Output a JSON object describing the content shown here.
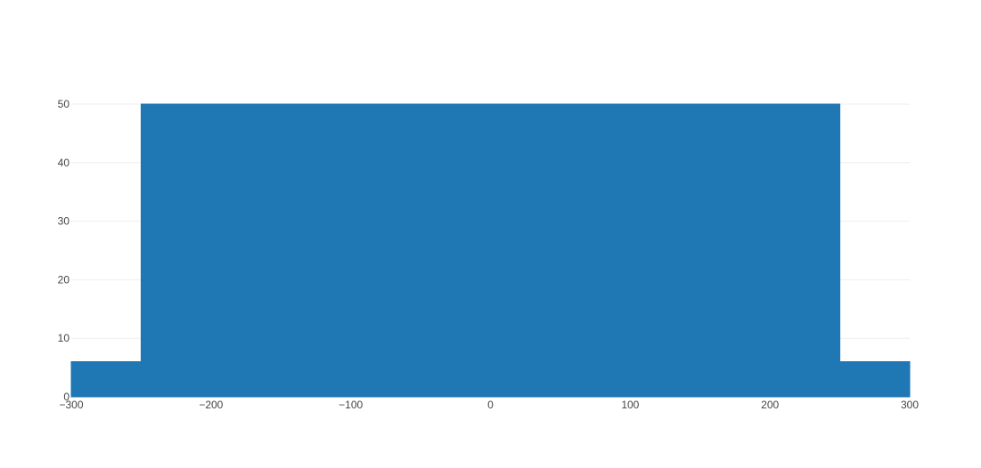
{
  "chart_data": {
    "type": "area",
    "title": "",
    "xlabel": "",
    "ylabel": "",
    "xlim": [
      -300,
      300
    ],
    "ylim": [
      0,
      50
    ],
    "grid": true,
    "legend": "none",
    "x_ticks": [
      {
        "value": -300,
        "label": "−300"
      },
      {
        "value": -200,
        "label": "−200"
      },
      {
        "value": -100,
        "label": "−100"
      },
      {
        "value": 0,
        "label": "0"
      },
      {
        "value": 100,
        "label": "100"
      },
      {
        "value": 200,
        "label": "200"
      },
      {
        "value": 300,
        "label": "300"
      }
    ],
    "y_ticks": [
      {
        "value": 0,
        "label": "0"
      },
      {
        "value": 10,
        "label": "10"
      },
      {
        "value": 20,
        "label": "20"
      },
      {
        "value": 30,
        "label": "30"
      },
      {
        "value": 40,
        "label": "40"
      },
      {
        "value": 50,
        "label": "50"
      }
    ],
    "series": [
      {
        "color": "#1f77b4",
        "x": [
          -300,
          -250,
          -250,
          250,
          250,
          300
        ],
        "y": [
          6,
          6,
          50,
          50,
          6,
          6
        ]
      }
    ]
  }
}
